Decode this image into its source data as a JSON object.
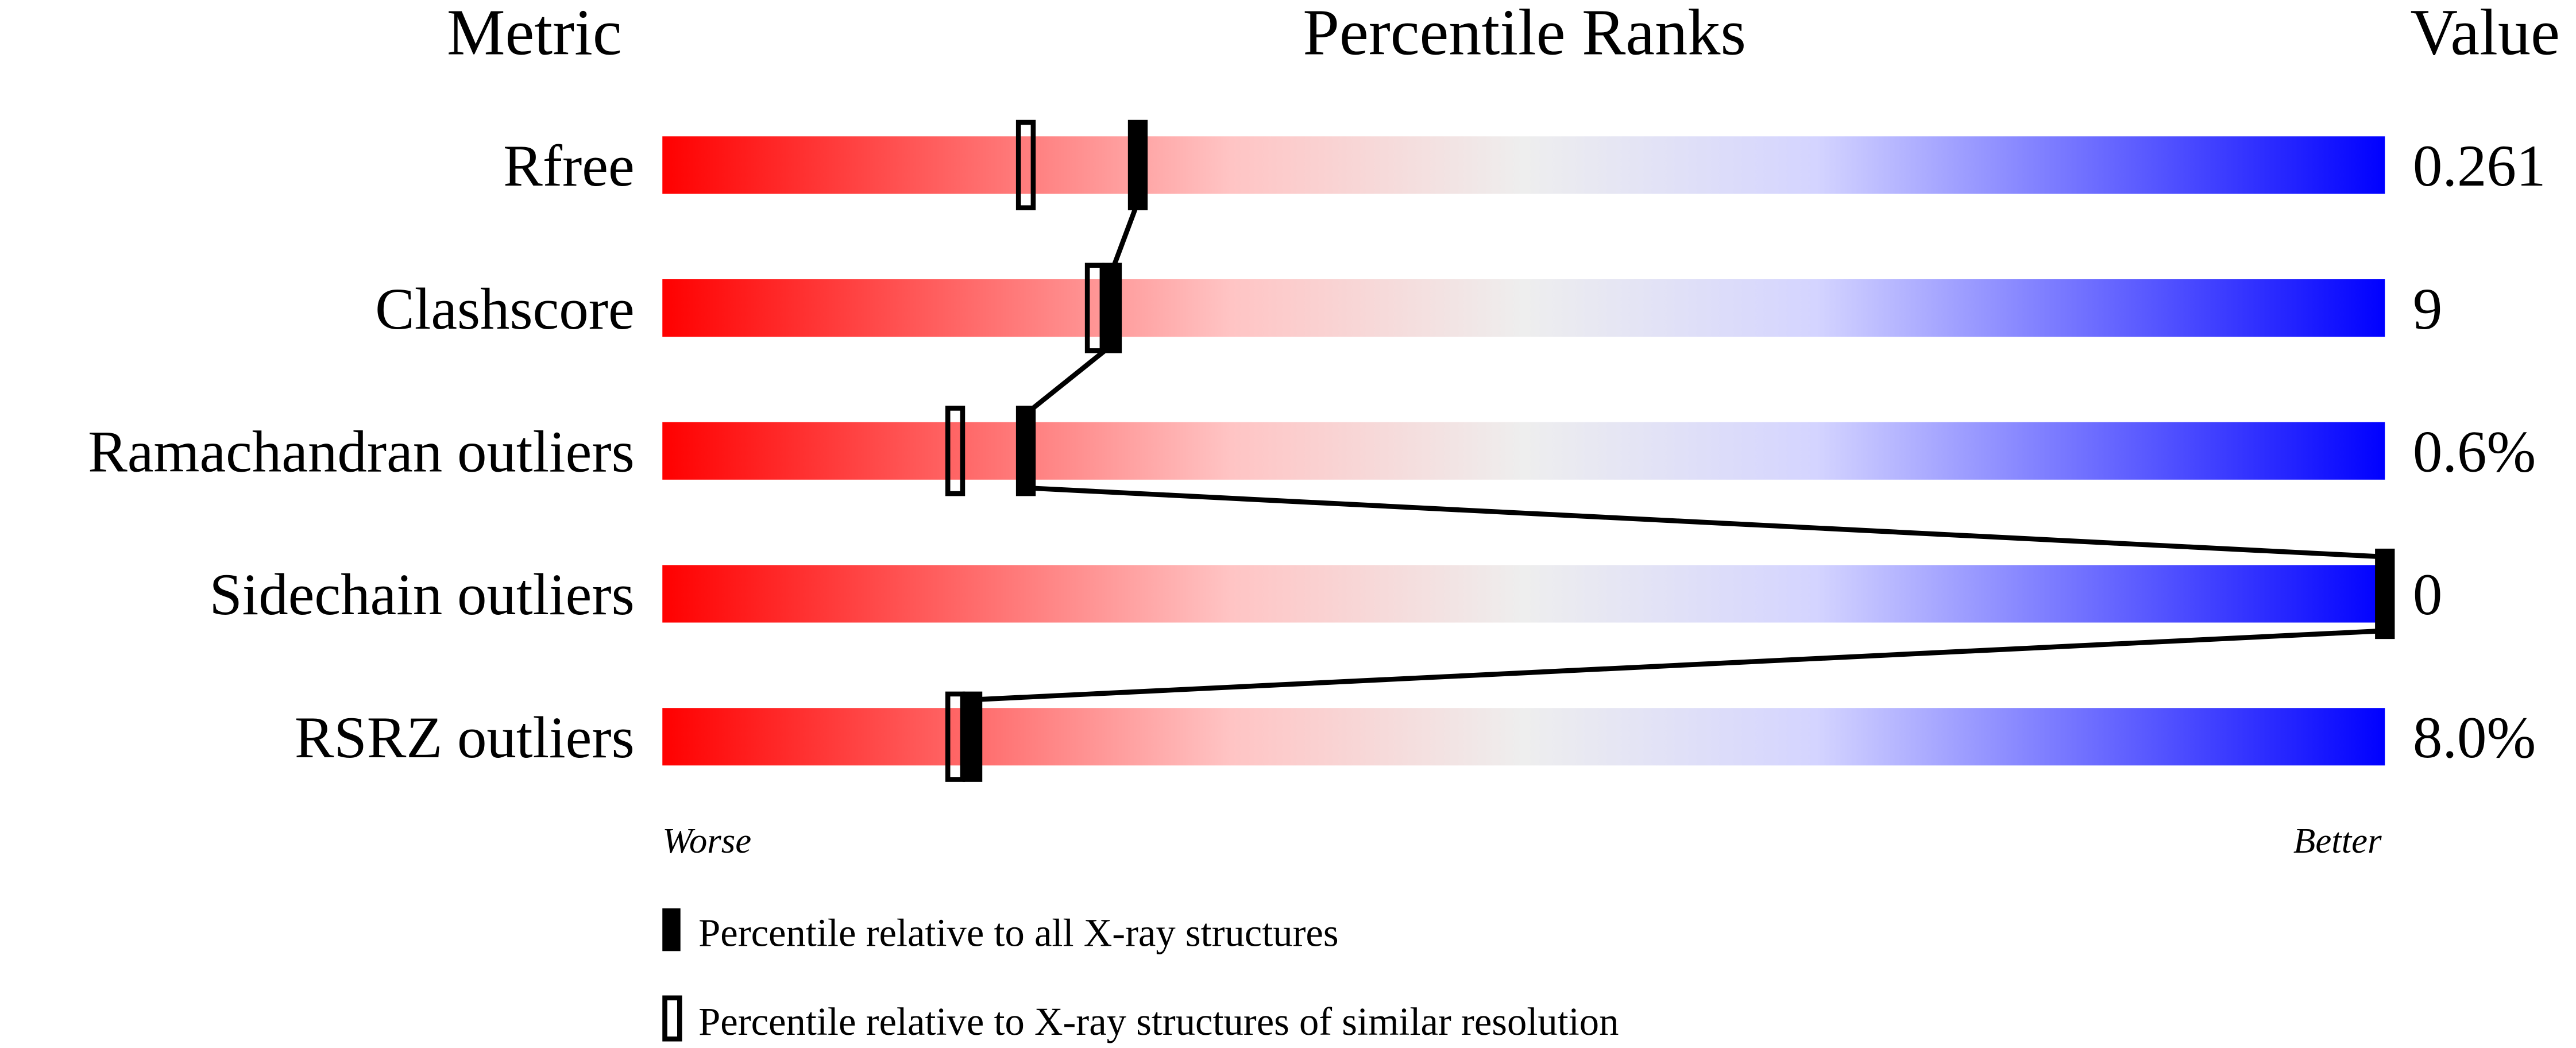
{
  "chart_data": {
    "type": "percentile-slider",
    "headers": {
      "metric": "Metric",
      "ranks": "Percentile Ranks",
      "value": "Value"
    },
    "xlim": [
      0,
      100
    ],
    "axis_labels": {
      "left": "Worse",
      "right": "Better"
    },
    "gradient_colors": [
      "#ff0000",
      "#ffc4c4",
      "#eeeeee",
      "#d4d4ff",
      "#0000ff"
    ],
    "metrics": [
      {
        "name": "Rfree",
        "value": "0.261",
        "percentile_all": 27.6,
        "percentile_similar": 21.1
      },
      {
        "name": "Clashscore",
        "value": "9",
        "percentile_all": 26.1,
        "percentile_similar": 25.1
      },
      {
        "name": "Ramachandran outliers",
        "value": "0.6%",
        "percentile_all": 21.1,
        "percentile_similar": 17.0
      },
      {
        "name": "Sidechain outliers",
        "value": "0",
        "percentile_all": 100,
        "percentile_similar": null
      },
      {
        "name": "RSRZ outliers",
        "value": "8.0%",
        "percentile_all": 18.0,
        "percentile_similar": 17.0
      }
    ],
    "legend": [
      {
        "marker": "filled",
        "label": "Percentile relative to all X-ray structures"
      },
      {
        "marker": "outline",
        "label": "Percentile relative to X-ray structures of similar resolution"
      }
    ]
  }
}
